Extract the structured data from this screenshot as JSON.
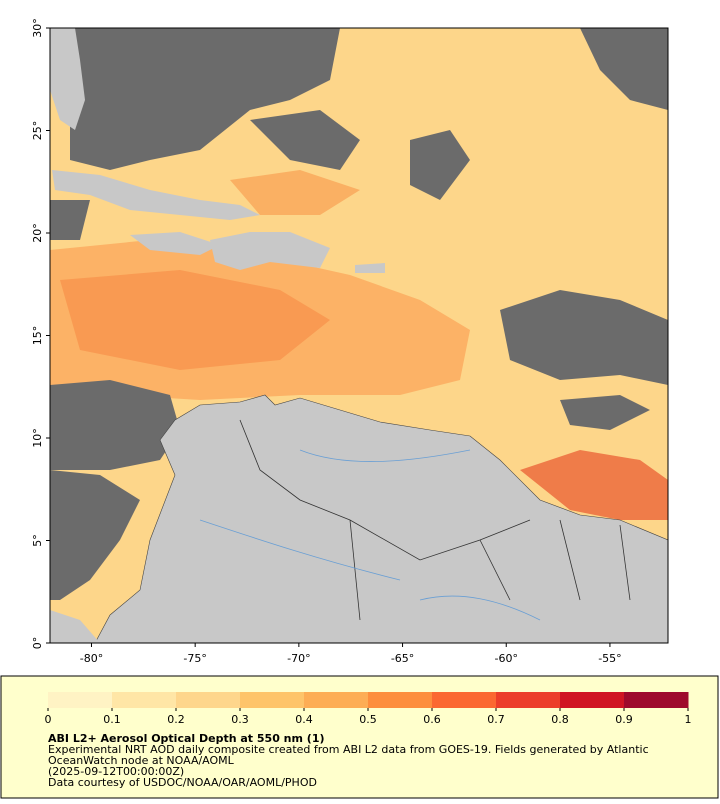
{
  "map": {
    "xlim": [
      -82,
      -52.2
    ],
    "ylim": [
      0,
      30
    ],
    "xticks": [
      {
        "value": -80,
        "label": "-80°"
      },
      {
        "value": -75,
        "label": "-75°"
      },
      {
        "value": -70,
        "label": "-70°"
      },
      {
        "value": -65,
        "label": "-65°"
      },
      {
        "value": -60,
        "label": "-60°"
      },
      {
        "value": -55,
        "label": "-55°"
      }
    ],
    "yticks": [
      {
        "value": 0,
        "label": "0°"
      },
      {
        "value": 5,
        "label": "5°"
      },
      {
        "value": 10,
        "label": "10°"
      },
      {
        "value": 15,
        "label": "15°"
      },
      {
        "value": 20,
        "label": "20°"
      },
      {
        "value": 25,
        "label": "25°"
      },
      {
        "value": 30,
        "label": "30°"
      }
    ],
    "colorbar": {
      "lim": [
        0,
        1
      ],
      "ticks": [
        0,
        0.1,
        0.2,
        0.3,
        0.4,
        0.5,
        0.6,
        0.7,
        0.8,
        0.9,
        1
      ],
      "colors": [
        "#fff3c4",
        "#ffe6a6",
        "#fed68c",
        "#fec46a",
        "#fdad55",
        "#fd8e3d",
        "#fb6831",
        "#ec3e2a",
        "#d01523",
        "#9e0a2c"
      ]
    },
    "caption": {
      "title": "ABI L2+ Aerosol Optical Depth at 550 nm (1)",
      "lines": [
        "Experimental NRT AOD daily composite created from ABI L2 data from GOES-19. Fields generated by Atlantic",
        "OceanWatch node at NOAA/AOML",
        "(2025-09-12T00:00:00Z)",
        "Data courtesy of USDOC/NOAA/OAR/AOML/PHOD"
      ]
    }
  }
}
